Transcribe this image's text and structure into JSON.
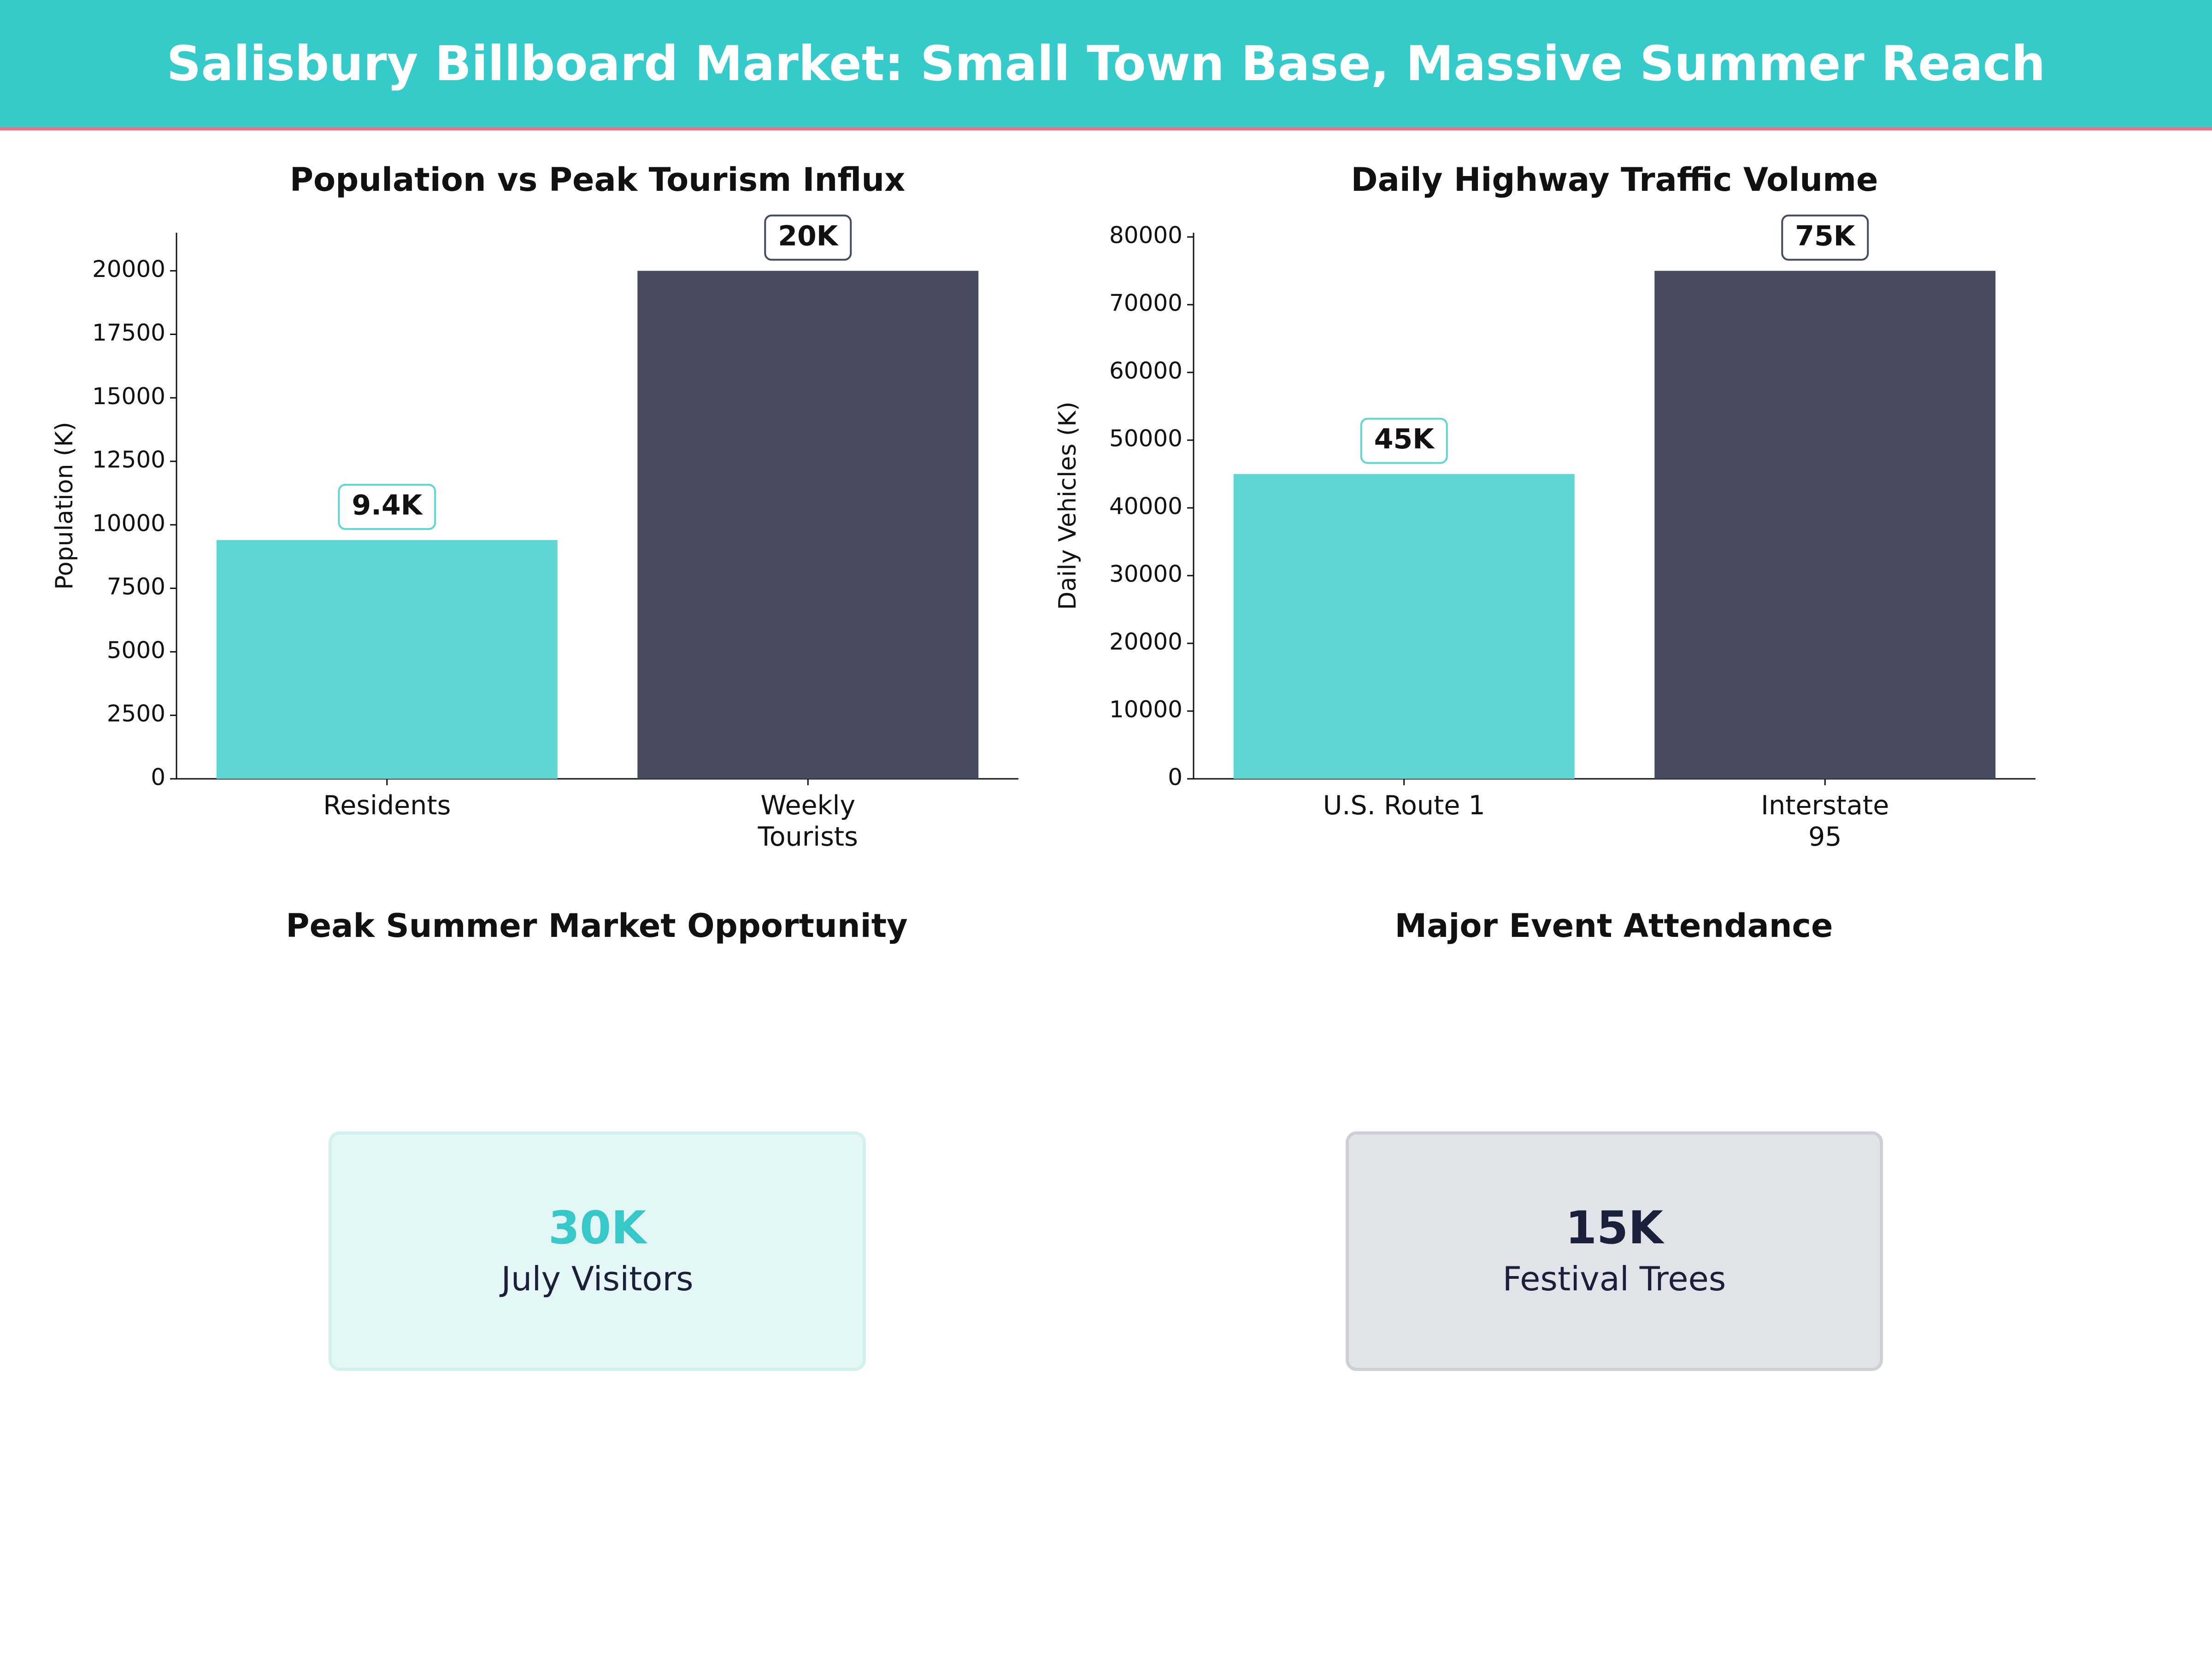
{
  "title": "Salisbury Billboard Market: Small Town Base, Massive Summer Reach",
  "chart_data": [
    {
      "type": "bar",
      "title": "Population vs Peak Tourism Influx",
      "ylabel": "Population (K)",
      "categories": [
        "Residents",
        "Weekly\nTourists"
      ],
      "values": [
        9400,
        20000
      ],
      "value_labels": [
        "9.4K",
        "20K"
      ],
      "colors": [
        "#5dd6d4",
        "#474b60"
      ],
      "ylim": [
        0,
        21500
      ],
      "yticks": [
        0,
        2500,
        5000,
        7500,
        10000,
        12500,
        15000,
        17500,
        20000
      ]
    },
    {
      "type": "bar",
      "title": "Daily Highway Traffic Volume",
      "ylabel": "Daily Vehicles (K)",
      "categories": [
        "U.S. Route 1",
        "Interstate\n95"
      ],
      "values": [
        45000,
        75000
      ],
      "value_labels": [
        "45K",
        "75K"
      ],
      "colors": [
        "#5dd6d4",
        "#474b60"
      ],
      "ylim": [
        0,
        80625
      ],
      "yticks": [
        0,
        10000,
        20000,
        30000,
        40000,
        50000,
        60000,
        70000,
        80000
      ]
    }
  ],
  "kpis": [
    {
      "title": "Peak Summer Market Opportunity",
      "value": "30K",
      "label": "July Visitors"
    },
    {
      "title": "Major Event Attendance",
      "value": "15K",
      "label": "Festival Trees"
    }
  ]
}
